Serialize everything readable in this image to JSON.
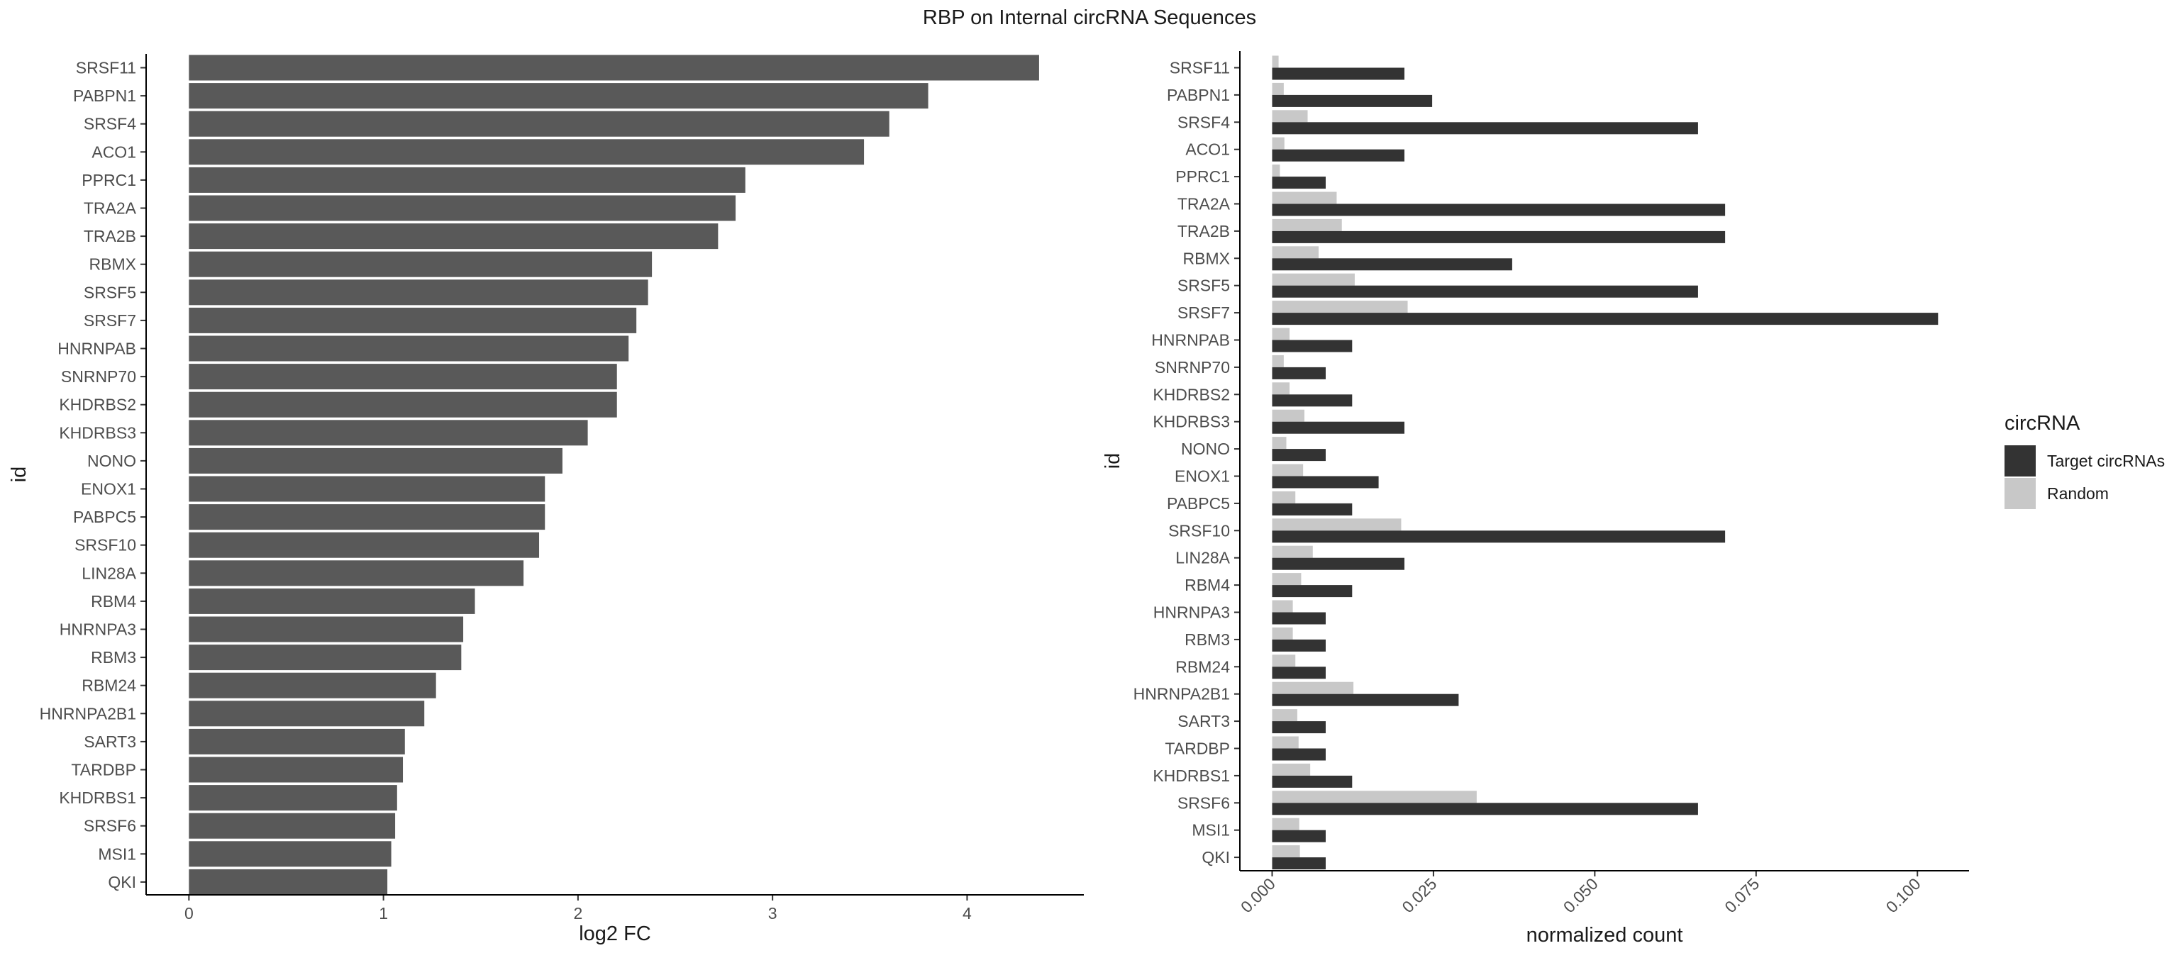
{
  "title": "RBP on Internal circRNA Sequences",
  "chart_data": [
    {
      "type": "bar",
      "orientation": "horizontal",
      "xlabel": "log2 FC",
      "ylabel": "id",
      "xlim": [
        -0.22,
        4.6
      ],
      "xticks": [
        "0",
        "1",
        "2",
        "3",
        "4"
      ],
      "grid": false,
      "bar_color": "#595959",
      "categories": [
        "SRSF11",
        "PABPN1",
        "SRSF4",
        "ACO1",
        "PPRC1",
        "TRA2A",
        "TRA2B",
        "RBMX",
        "SRSF5",
        "SRSF7",
        "HNRNPAB",
        "SNRNP70",
        "KHDRBS2",
        "KHDRBS3",
        "NONO",
        "ENOX1",
        "PABPC5",
        "SRSF10",
        "LIN28A",
        "RBM4",
        "HNRNPA3",
        "RBM3",
        "RBM24",
        "HNRNPA2B1",
        "SART3",
        "TARDBP",
        "KHDRBS1",
        "SRSF6",
        "MSI1",
        "QKI"
      ],
      "values": [
        4.37,
        3.8,
        3.6,
        3.47,
        2.86,
        2.81,
        2.72,
        2.38,
        2.36,
        2.3,
        2.26,
        2.2,
        2.2,
        2.05,
        1.92,
        1.83,
        1.83,
        1.8,
        1.72,
        1.47,
        1.41,
        1.4,
        1.27,
        1.21,
        1.11,
        1.1,
        1.07,
        1.06,
        1.04,
        1.02
      ]
    },
    {
      "type": "bar",
      "orientation": "horizontal",
      "grouped": true,
      "xlabel": "normalized count",
      "ylabel": "id",
      "xlim": [
        -0.005,
        0.108
      ],
      "xticks": [
        "0.000",
        "0.025",
        "0.050",
        "0.075",
        "0.100"
      ],
      "grid": false,
      "legend": {
        "title": "circRNA",
        "position": "right"
      },
      "categories": [
        "SRSF11",
        "PABPN1",
        "SRSF4",
        "ACO1",
        "PPRC1",
        "TRA2A",
        "TRA2B",
        "RBMX",
        "SRSF5",
        "SRSF7",
        "HNRNPAB",
        "SNRNP70",
        "KHDRBS2",
        "KHDRBS3",
        "NONO",
        "ENOX1",
        "PABPC5",
        "SRSF10",
        "LIN28A",
        "RBM4",
        "HNRNPA3",
        "RBM3",
        "RBM24",
        "HNRNPA2B1",
        "SART3",
        "TARDBP",
        "KHDRBS1",
        "SRSF6",
        "MSI1",
        "QKI"
      ],
      "series": [
        {
          "name": "Target circRNAs",
          "color": "#333333",
          "values": [
            0.0205,
            0.0248,
            0.066,
            0.0205,
            0.0083,
            0.0702,
            0.0702,
            0.0372,
            0.066,
            0.1032,
            0.0124,
            0.0083,
            0.0124,
            0.0205,
            0.0083,
            0.0165,
            0.0124,
            0.0702,
            0.0205,
            0.0124,
            0.0083,
            0.0083,
            0.0083,
            0.0289,
            0.0083,
            0.0083,
            0.0124,
            0.066,
            0.0083,
            0.0083
          ]
        },
        {
          "name": "Random",
          "color": "#c8c8c8",
          "values": [
            0.001,
            0.0018,
            0.0055,
            0.0019,
            0.0012,
            0.01,
            0.0108,
            0.0072,
            0.0128,
            0.021,
            0.0027,
            0.0018,
            0.0027,
            0.005,
            0.0022,
            0.0048,
            0.0036,
            0.02,
            0.0063,
            0.0045,
            0.0032,
            0.0032,
            0.0036,
            0.0126,
            0.0039,
            0.0041,
            0.0059,
            0.0317,
            0.0042,
            0.0043
          ]
        }
      ]
    }
  ]
}
